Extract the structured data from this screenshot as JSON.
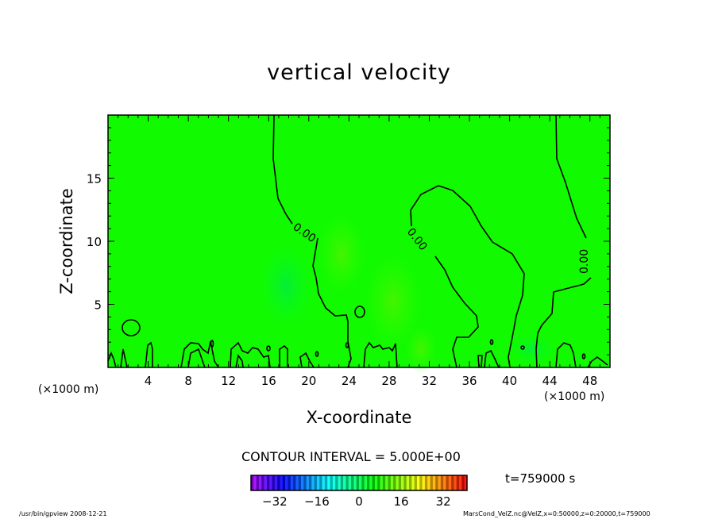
{
  "chart_data": {
    "type": "heatmap",
    "subtype": "filled contour",
    "title": "vertical velocity",
    "xlabel": "X-coordinate",
    "ylabel": "Z-coordinate",
    "x_unit_label": "(×1000 m)",
    "z_unit_label": "(×1000 m)",
    "xlim": [
      0,
      50
    ],
    "ylim": [
      0,
      20
    ],
    "xticks": [
      4,
      8,
      12,
      16,
      20,
      24,
      28,
      32,
      36,
      40,
      44,
      48
    ],
    "yticks": [
      5,
      10,
      15
    ],
    "contour_interval_text": "CONTOUR INTERVAL = 5.000E+00",
    "contour_levels": [
      0
    ],
    "contour_label": "0.00",
    "field_description_values": "near zero everywhere (green), weak positive maxima near x≈24,z≈9 and x≈30,z≈5; weak negative near x≈18,z≈7",
    "colorbar": {
      "range": [
        -41,
        41
      ],
      "ticks": [
        -32,
        -16,
        0,
        16,
        32
      ]
    },
    "time_text": "t=759000 s"
  },
  "footer": {
    "left": "/usr/bin/gpview   2008-12-21",
    "right": "MarsCond_VelZ.nc@VelZ,x=0:50000,z=0:20000,t=759000"
  }
}
